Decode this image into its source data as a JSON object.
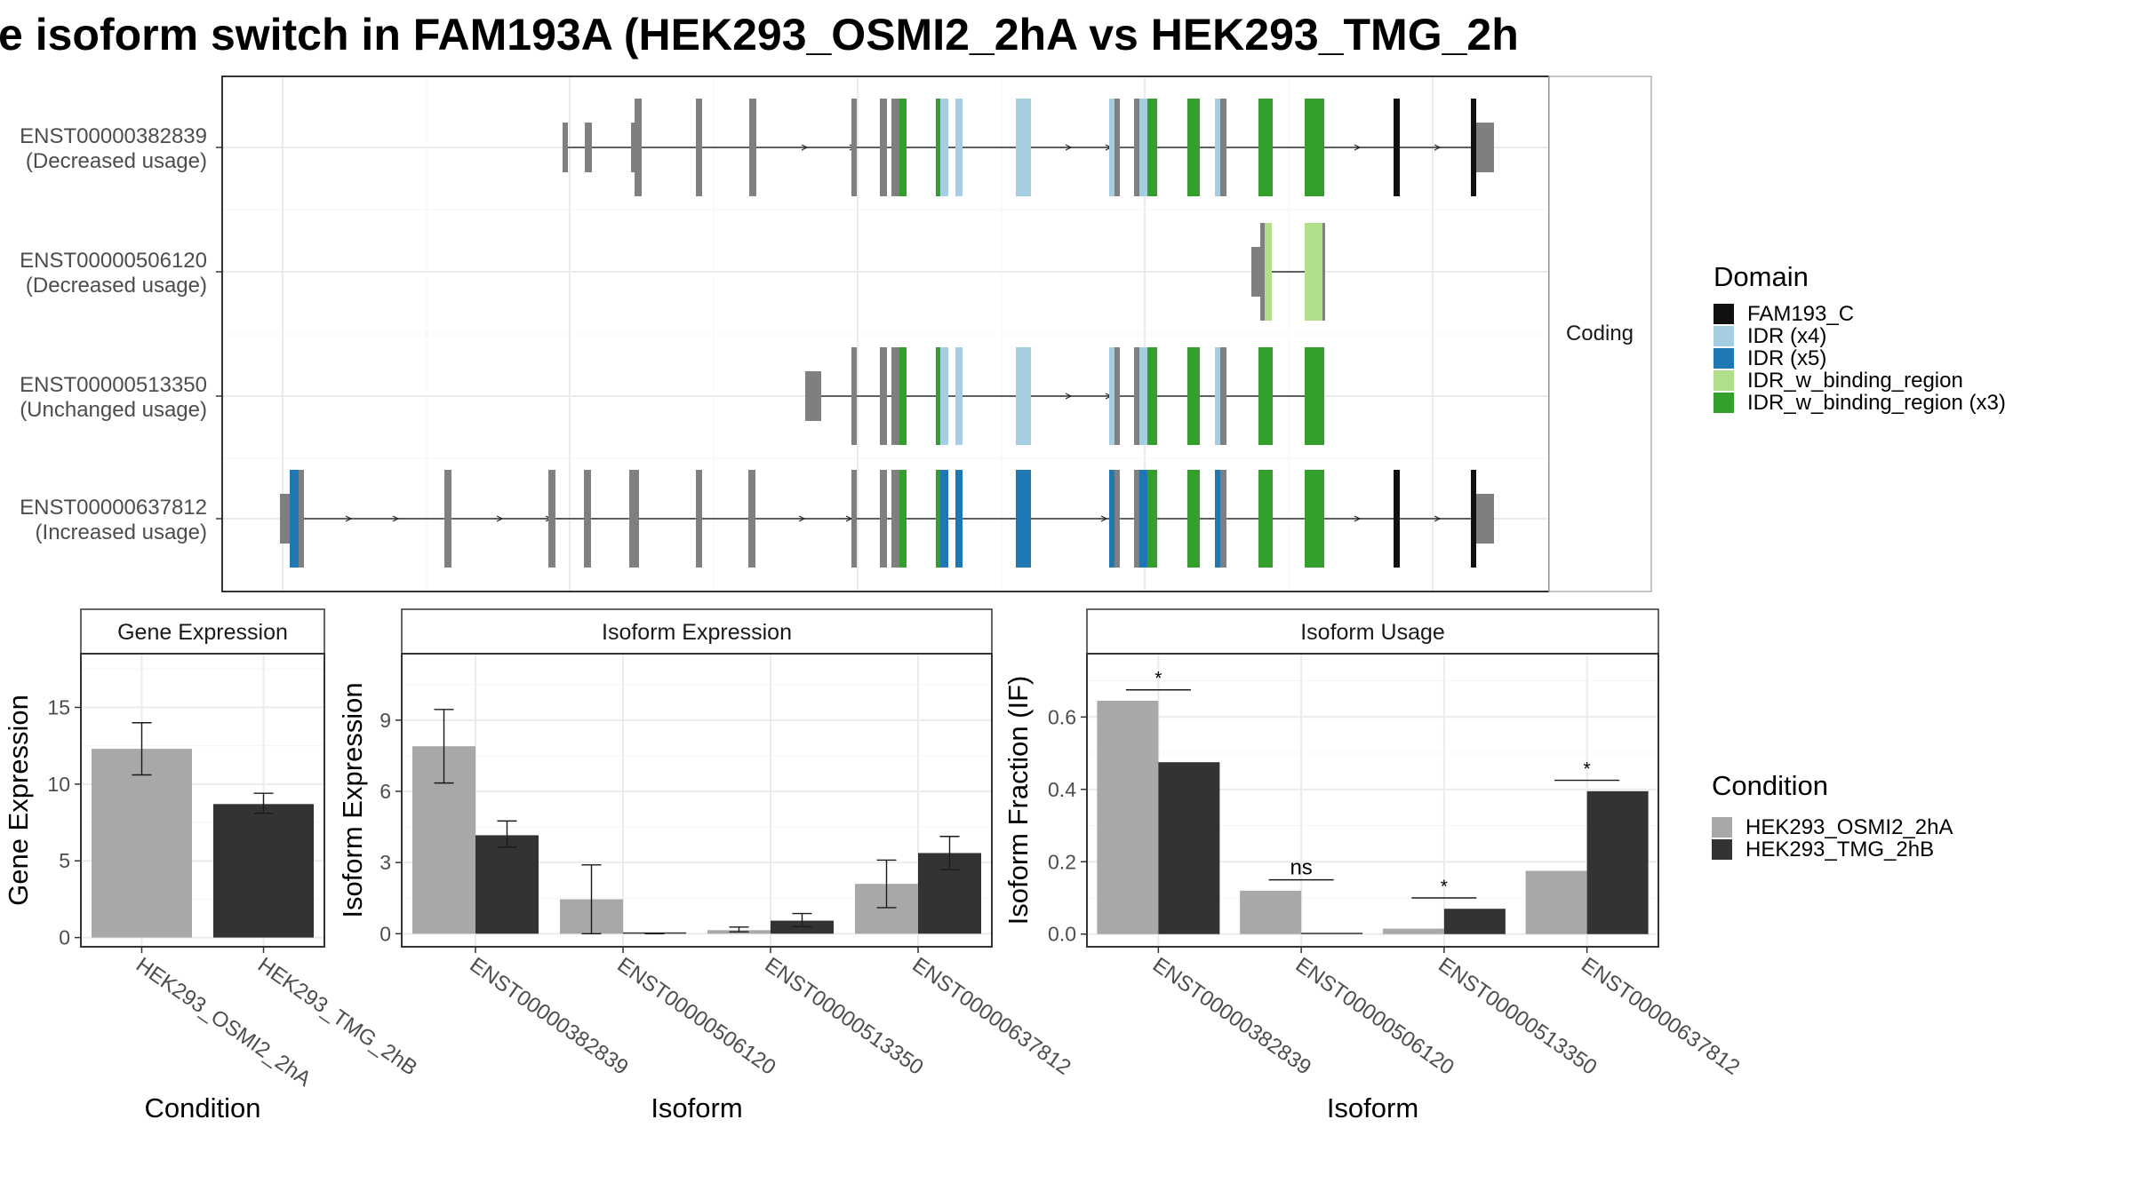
{
  "title": "e isoform switch in FAM193A (HEK293_OSMI2_2hA vs HEK293_TMG_2h",
  "colors": {
    "FAM193_C": "#111111",
    "IDR (x4)": "#a6cee3",
    "IDR (x5)": "#1f78b4",
    "IDR_w_binding_region": "#b2df8a",
    "IDR_w_binding_region (x3)": "#33a02c",
    "noncoding": "#7f7f7f",
    "condA": "#a8a8a8",
    "condB": "#333333"
  },
  "structure": {
    "strip_label": "Coding",
    "transcripts": [
      {
        "name": "ENST00000382839",
        "usage": "(Decreased usage)"
      },
      {
        "name": "ENST00000506120",
        "usage": "(Decreased usage)"
      },
      {
        "name": "ENST00000513350",
        "usage": "(Unchanged usage)"
      },
      {
        "name": "ENST00000637812",
        "usage": "(Increased usage)"
      }
    ]
  },
  "domain_legend": {
    "title": "Domain",
    "items": [
      "FAM193_C",
      "IDR (x4)",
      "IDR (x5)",
      "IDR_w_binding_region",
      "IDR_w_binding_region (x3)"
    ]
  },
  "condition_legend": {
    "title": "Condition",
    "items": [
      "HEK293_OSMI2_2hA",
      "HEK293_TMG_2hB"
    ]
  },
  "chart_data": [
    {
      "type": "bar",
      "title": "Gene Expression",
      "xlabel": "Condition",
      "ylabel": "Gene Expression",
      "categories": [
        "HEK293_OSMI2_2hA",
        "HEK293_TMG_2hB"
      ],
      "values": [
        12.3,
        8.7
      ],
      "err_low": [
        10.6,
        8.1
      ],
      "err_high": [
        14.0,
        9.4
      ],
      "ylim": [
        -0.6,
        18.5
      ],
      "yticks": [
        0,
        5,
        10,
        15
      ]
    },
    {
      "type": "bar",
      "title": "Isoform Expression",
      "xlabel": "Isoform",
      "ylabel": "Isoform Expression",
      "categories": [
        "ENST00000382839",
        "ENST00000506120",
        "ENST00000513350",
        "ENST00000637812"
      ],
      "series": [
        {
          "name": "HEK293_OSMI2_2hA",
          "values": [
            7.9,
            1.45,
            0.15,
            2.1
          ],
          "err_low": [
            6.35,
            0.0,
            0.08,
            1.1
          ],
          "err_high": [
            9.45,
            2.9,
            0.28,
            3.1
          ]
        },
        {
          "name": "HEK293_TMG_2hB",
          "values": [
            4.15,
            0.0,
            0.55,
            3.4
          ],
          "err_low": [
            3.65,
            0.0,
            0.3,
            2.7
          ],
          "err_high": [
            4.75,
            0.0,
            0.85,
            4.1
          ]
        }
      ],
      "ylim": [
        -0.55,
        11.8
      ],
      "yticks": [
        0,
        3,
        6,
        9
      ]
    },
    {
      "type": "bar",
      "title": "Isoform Usage",
      "xlabel": "Isoform",
      "ylabel": "Isoform Fraction (IF)",
      "categories": [
        "ENST00000382839",
        "ENST00000506120",
        "ENST00000513350",
        "ENST00000637812"
      ],
      "series": [
        {
          "name": "HEK293_OSMI2_2hA",
          "values": [
            0.645,
            0.12,
            0.015,
            0.175
          ]
        },
        {
          "name": "HEK293_TMG_2hB",
          "values": [
            0.475,
            0.0,
            0.07,
            0.395
          ]
        }
      ],
      "significance": [
        "*",
        "ns",
        "*",
        "*"
      ],
      "ylim": [
        -0.035,
        0.775
      ],
      "yticks": [
        0.0,
        0.2,
        0.4,
        0.6
      ],
      "ytick_labels": [
        "0.0",
        "0.2",
        "0.4",
        "0.6"
      ]
    }
  ]
}
